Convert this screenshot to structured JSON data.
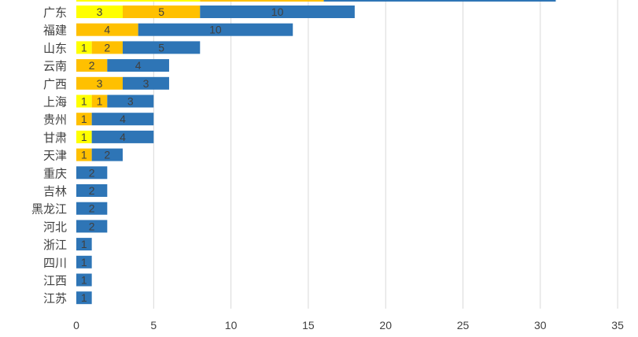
{
  "chart_data": {
    "type": "bar",
    "orientation": "horizontal",
    "stacked": true,
    "title": "",
    "xlabel": "",
    "ylabel": "",
    "xlim": [
      0,
      35
    ],
    "x_ticks": [
      "0",
      "5",
      "10",
      "15",
      "20",
      "25",
      "30",
      "35"
    ],
    "grid": true,
    "categories": [
      "广东",
      "福建",
      "山东",
      "云南",
      "广西",
      "上海",
      "贵州",
      "甘肃",
      "天津",
      "重庆",
      "吉林",
      "黑龙江",
      "河北",
      "浙江",
      "四川",
      "江西",
      "江苏"
    ],
    "partial_top_bar": {
      "segment_ends": [
        8,
        16,
        31
      ]
    },
    "series": [
      {
        "color": "#ffff00",
        "values": [
          3,
          0,
          1,
          0,
          0,
          1,
          0,
          1,
          0,
          0,
          0,
          0,
          0,
          0,
          0,
          0,
          0
        ]
      },
      {
        "color": "#ffc000",
        "values": [
          5,
          4,
          2,
          2,
          3,
          1,
          1,
          0,
          1,
          0,
          0,
          0,
          0,
          0,
          0,
          0,
          0
        ]
      },
      {
        "color": "#2e75b6",
        "values": [
          10,
          10,
          5,
          4,
          3,
          3,
          4,
          4,
          2,
          2,
          2,
          2,
          2,
          1,
          1,
          1,
          1
        ]
      }
    ]
  }
}
